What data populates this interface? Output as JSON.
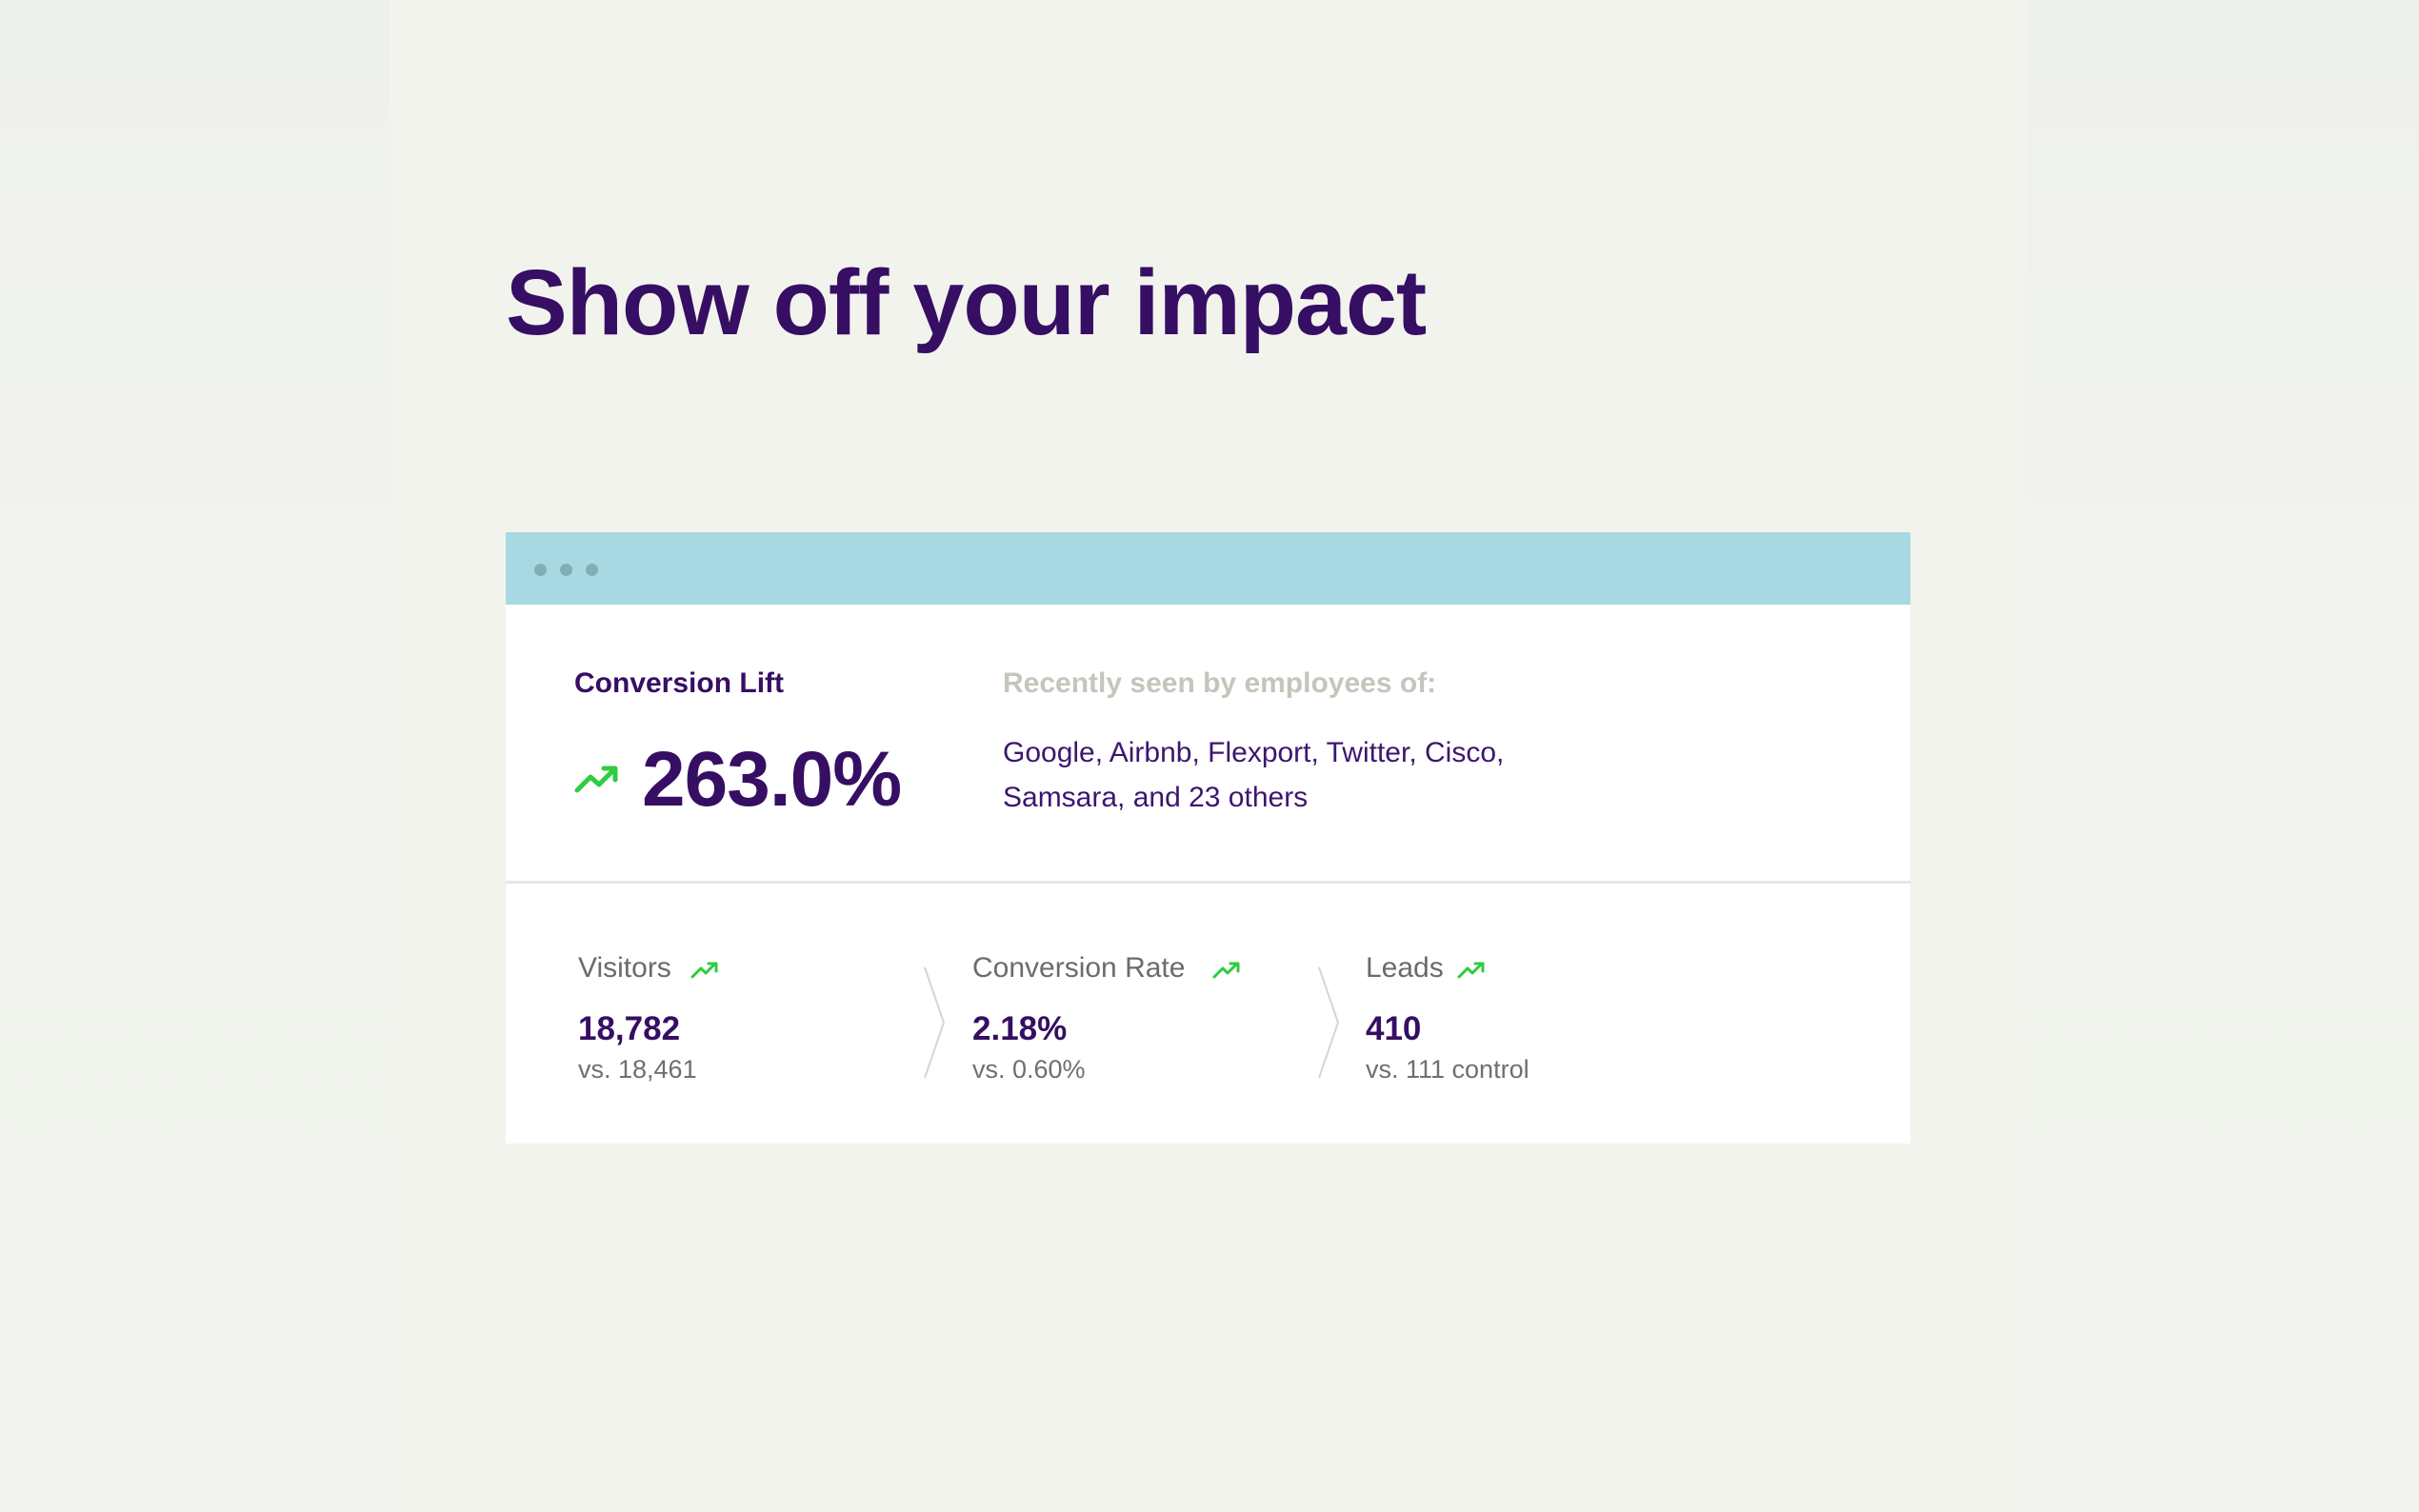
{
  "page": {
    "headline": "Show off your impact"
  },
  "card": {
    "window_dots": [
      "dot",
      "dot",
      "dot"
    ],
    "lift": {
      "label": "Conversion Lift",
      "value": "263.0%",
      "icon": "trending-up-icon"
    },
    "recently_seen": {
      "label": "Recently seen by employees of:",
      "line1": "Google, Airbnb, Flexport, Twitter, Cisco,",
      "line2": "Samsara, and 23 others"
    },
    "metrics": [
      {
        "label": "Visitors",
        "value": "18,782",
        "compare": "vs. 18,461",
        "icon": "trending-up-icon"
      },
      {
        "label": "Conversion Rate",
        "value": "2.18%",
        "compare": "vs. 0.60%",
        "icon": "trending-up-icon"
      },
      {
        "label": "Leads",
        "value": "410",
        "compare": "vs. 111 control",
        "icon": "trending-up-icon"
      }
    ]
  },
  "colors": {
    "brand_purple": "#360e63",
    "titlebar": "#a8d9e3",
    "trend_green": "#2ecc40",
    "muted_label": "#c6c5bb"
  }
}
